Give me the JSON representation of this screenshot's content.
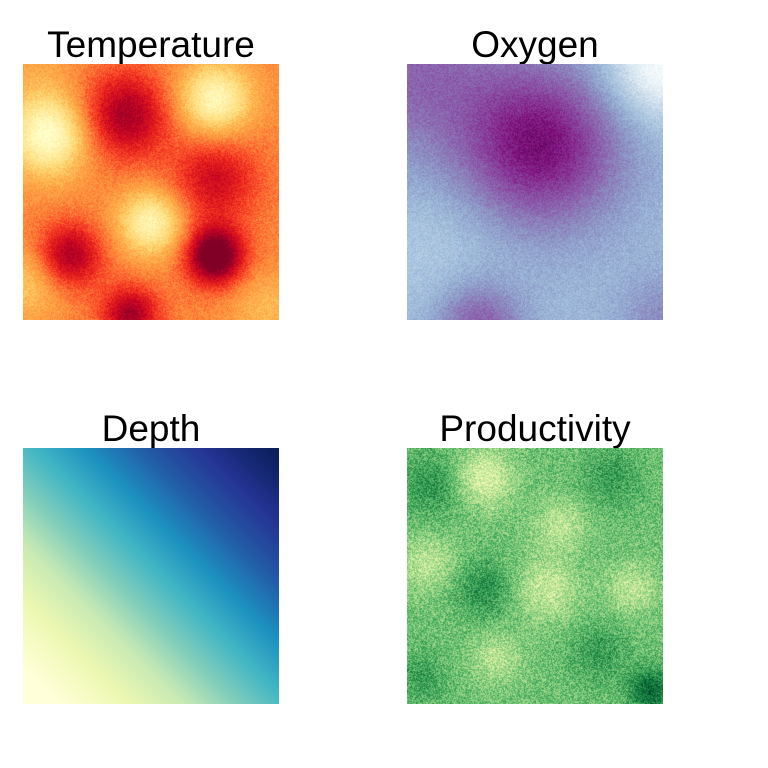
{
  "chart_data": [
    {
      "type": "heatmap",
      "title": "Temperature",
      "colormap": "YlOrRd",
      "colormap_stops": [
        "#ffffcc",
        "#ffeda0",
        "#fed976",
        "#feb24c",
        "#fd8d3c",
        "#fc4e2a",
        "#e31a1c",
        "#bd0026",
        "#800026"
      ],
      "value_range": [
        0.15,
        0.85
      ],
      "grain": 0.05,
      "field": {
        "base": 0.5,
        "blobs": [
          {
            "x": 0.1,
            "y": 0.28,
            "s": 0.11,
            "a": -0.35
          },
          {
            "x": 0.75,
            "y": 0.14,
            "s": 0.1,
            "a": -0.32
          },
          {
            "x": 0.5,
            "y": 0.62,
            "s": 0.09,
            "a": -0.3
          },
          {
            "x": 0.02,
            "y": 0.85,
            "s": 0.1,
            "a": -0.15
          },
          {
            "x": 0.4,
            "y": 0.2,
            "s": 0.12,
            "a": 0.3
          },
          {
            "x": 0.75,
            "y": 0.45,
            "s": 0.12,
            "a": 0.22
          },
          {
            "x": 0.18,
            "y": 0.75,
            "s": 0.09,
            "a": 0.3
          },
          {
            "x": 0.75,
            "y": 0.75,
            "s": 0.08,
            "a": 0.45
          },
          {
            "x": 0.42,
            "y": 0.98,
            "s": 0.08,
            "a": 0.3
          },
          {
            "x": 0.95,
            "y": 0.95,
            "s": 0.1,
            "a": -0.1
          },
          {
            "x": 0.05,
            "y": 0.05,
            "s": 0.12,
            "a": -0.05
          }
        ]
      },
      "grid": false,
      "axes": false
    },
    {
      "type": "heatmap",
      "title": "Oxygen",
      "colormap": "BuPu",
      "colormap_stops": [
        "#f7fcfd",
        "#e0ecf4",
        "#bfd3e6",
        "#9ebcda",
        "#8c96c6",
        "#8c6bb1",
        "#88419d",
        "#810f7c",
        "#4d004b"
      ],
      "value_range": [
        0.0,
        1.0
      ],
      "grain": 0.07,
      "field": {
        "base": 0.38,
        "blobs": [
          {
            "x": 0.52,
            "y": 0.32,
            "s": 0.22,
            "a": 0.5
          },
          {
            "x": 0.02,
            "y": 0.02,
            "s": 0.25,
            "a": 0.25
          },
          {
            "x": 0.28,
            "y": 1.02,
            "s": 0.12,
            "a": 0.3
          },
          {
            "x": 1.0,
            "y": 0.0,
            "s": 0.15,
            "a": -0.4
          },
          {
            "x": 1.0,
            "y": 1.0,
            "s": 0.12,
            "a": 0.15
          },
          {
            "x": 0.12,
            "y": 0.72,
            "s": 0.2,
            "a": -0.08
          }
        ]
      },
      "grid": false,
      "axes": false
    },
    {
      "type": "heatmap",
      "title": "Depth",
      "colormap": "YlGnBu",
      "colormap_stops": [
        "#ffffd9",
        "#edf8b1",
        "#c7e9b4",
        "#7fcdbb",
        "#41b6c4",
        "#1d91c0",
        "#225ea8",
        "#253494",
        "#081d58"
      ],
      "value_range": [
        0.05,
        1.0
      ],
      "grain": 0.0,
      "field": {
        "gradient": {
          "x0": 0.0,
          "y0": 1.0,
          "x1": 1.0,
          "y1": 0.0,
          "curve": 0.2
        }
      },
      "grid": false,
      "axes": false
    },
    {
      "type": "heatmap",
      "title": "Productivity",
      "colormap": "YlGn",
      "colormap_stops": [
        "#ffffe5",
        "#f7fcb9",
        "#d9f0a3",
        "#addd8e",
        "#78c679",
        "#41ab5d",
        "#238443",
        "#006837",
        "#004529"
      ],
      "value_range": [
        0.0,
        1.0
      ],
      "grain": 0.16,
      "field": {
        "base": 0.52,
        "blobs": [
          {
            "x": 0.3,
            "y": 0.12,
            "s": 0.08,
            "a": -0.3
          },
          {
            "x": 0.6,
            "y": 0.3,
            "s": 0.07,
            "a": -0.2
          },
          {
            "x": 0.08,
            "y": 0.45,
            "s": 0.08,
            "a": -0.2
          },
          {
            "x": 0.55,
            "y": 0.55,
            "s": 0.09,
            "a": -0.22
          },
          {
            "x": 0.88,
            "y": 0.55,
            "s": 0.07,
            "a": -0.2
          },
          {
            "x": 0.35,
            "y": 0.82,
            "s": 0.07,
            "a": -0.18
          },
          {
            "x": 0.1,
            "y": 0.15,
            "s": 0.09,
            "a": 0.18
          },
          {
            "x": 0.8,
            "y": 0.12,
            "s": 0.08,
            "a": 0.15
          },
          {
            "x": 0.3,
            "y": 0.55,
            "s": 0.08,
            "a": 0.2
          },
          {
            "x": 0.75,
            "y": 0.8,
            "s": 0.08,
            "a": 0.15
          },
          {
            "x": 0.95,
            "y": 0.95,
            "s": 0.06,
            "a": 0.35
          },
          {
            "x": 0.05,
            "y": 0.9,
            "s": 0.07,
            "a": 0.15
          }
        ]
      },
      "grid": false,
      "axes": false
    }
  ]
}
